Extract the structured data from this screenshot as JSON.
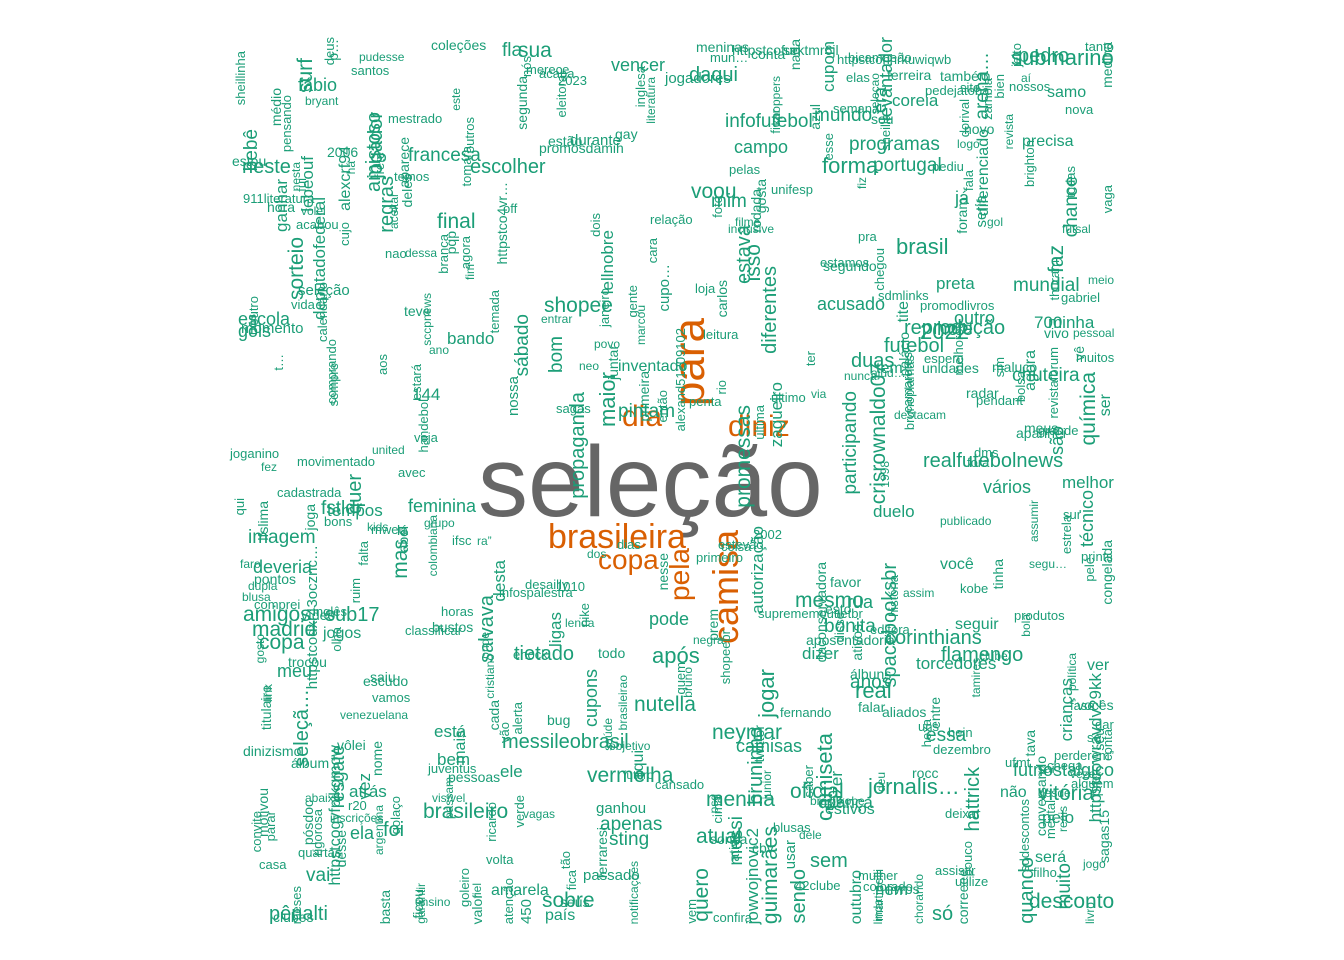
{
  "cloud": {
    "central_word": "seleção",
    "colors": {
      "small": "#1b9e77",
      "large": "#d95f02",
      "central": "#666666"
    },
    "large_words": [
      "para",
      "brasileira",
      "camisa",
      "dia",
      "diniz",
      "copa",
      "pela"
    ],
    "medium_words": [
      "sendo",
      "foi",
      "futebol",
      "isso",
      "não",
      "tem",
      "pelo",
      "já",
      "brasil",
      "outro",
      "programas",
      "participando",
      "propaganda",
      "vencer",
      "cupom",
      "lellnobre",
      "menina",
      "imagem",
      "acusado",
      "feminina",
      "amigos",
      "flamengo",
      "melhor",
      "estivos",
      "vai",
      "aqui",
      "bem",
      "gols",
      "só",
      "fla",
      "dizer",
      "sem",
      "estava",
      "tietado",
      "bando",
      "ver",
      "hoje",
      "ela",
      "zagueiro",
      "alexcrf94",
      "duas",
      "minha",
      "país",
      "jowvojnovic2",
      "ele",
      "duelo",
      "escolher",
      "quer",
      "rua",
      "muito",
      "mundial",
      "passado",
      "maior",
      "amarela",
      "realfutebolnews",
      "messileobrasil",
      "infofutebol",
      "madrid",
      "nem",
      "francesa",
      "preta",
      "torcedores",
      "hattrick",
      "jogador",
      "usar",
      "mais",
      "campo",
      "mesmo",
      "autorização",
      "pênalti",
      "final",
      "após",
      "anos",
      "ganhar",
      "sua",
      "você",
      "jornalis…",
      "forma",
      "copa",
      "ser",
      "são",
      "essa",
      "era",
      "ganhou",
      "amistoso",
      "mundo",
      "deputadofederal",
      "diferenciado",
      "meu",
      "neste",
      "seguir",
      "está",
      "nossa",
      "fábio",
      "quero",
      "sorteio",
      "sobre",
      "ligas",
      "pode",
      "messi",
      "vermelha",
      "desconto",
      "jogar",
      "atrás",
      "vez",
      "tite",
      "química",
      "144",
      "corinthians",
      "reprodução",
      "diferentes",
      "técnico",
      "nutella",
      "chance",
      "durante",
      "camisas",
      "arena…",
      "bom",
      "450",
      "apenas",
      "700",
      "sábado",
      "mas",
      "oficial",
      "jogos",
      "promessas",
      "brasileiro",
      "criança",
      "quando",
      "regras",
      "agora",
      "salvava",
      "pintam",
      "crianças",
      "fazer",
      "escola",
      "futnostalgico",
      "submarino",
      "camiseta",
      "shopee",
      "real",
      "outubro",
      "sting",
      "voou",
      "será",
      "coreia",
      "inventado",
      "samo",
      "sub17",
      "2022",
      "faz",
      "neymar",
      "chuteira",
      "lebeouf",
      "crisrownaldo07",
      "spacebooksbr",
      "httpstcowravdv29kk",
      "vitória",
      "atual",
      "pedro",
      "jogadores",
      "resgate",
      "tempos",
      "cupons",
      "cupo…",
      "mim",
      "desta",
      "guimarães",
      "fstldr",
      "seleção",
      "momento",
      "bruninho",
      "precisa",
      "deveria",
      "portugal",
      "seria",
      "bonita",
      "daqui",
      "bebê",
      "levantador",
      "httpstcodxr43ocznc…",
      "vários",
      "seleçã…",
      "httpstcogvfpjkgmow",
      "surf"
    ],
    "small_words": [
      "relação",
      "pendant",
      "carlos",
      "literatura",
      "ifsc",
      "cada",
      "lenda",
      "gol",
      "marcou",
      "vivo",
      "chorando",
      "bustos",
      "httpstcohnrkuwiqwb",
      "httpstco4vr…",
      "venezuelana",
      "último",
      "aceitar",
      "povo",
      "daconservadora",
      "visível",
      "bola",
      "conta",
      "cbv",
      "pedejatoba",
      "ficar",
      "todas",
      "mulher",
      "primeira",
      "perderem”",
      "nike",
      "ensino",
      "álbum",
      "prem",
      "garantir",
      "negra",
      "editora",
      "estará",
      "pontos",
      "desde",
      "verde",
      "penta",
      "2002",
      "revistaforum",
      "filme",
      "coisa",
      "kobe",
      "twitter",
      "sempre",
      "coleções",
      "motivou",
      "grande",
      "segu…",
      "golaço",
      "estamos",
      "passam",
      "casa",
      "qui",
      "nesta",
      "sdmlinks",
      "cima",
      "semana",
      "branca",
      "gabriel",
      "meus",
      "unidades",
      "brasileirao",
      "nossos",
      "deixar",
      "dois",
      "prints",
      "então",
      "argentina",
      "ative",
      "conversando",
      "calendário",
      "joga",
      "assumir",
      "lfslima",
      "fase",
      "pensando",
      "saúde",
      "dupla",
      "sei",
      "política",
      "segunda",
      "volta",
      "falta",
      "quartas",
      "nada",
      "jeito",
      "thuram",
      "utilize",
      "bruno",
      "fernando",
      "inglesa",
      "segundo",
      "abel",
      "radar",
      "médio",
      "kids",
      "link",
      "tava",
      "pudesse",
      "ter",
      "fez",
      "reais",
      "911literatura",
      "cujo",
      "avec",
      "zambia",
      "pessoas",
      "santos",
      "sonsa",
      "deles",
      "sou",
      "valor",
      "vocês",
      "atenção",
      "united",
      "esse",
      "última",
      "dos",
      "janeiro",
      "temos",
      "muitos",
      "volei",
      "ferraresi",
      "dorival",
      "nunca",
      "vaga",
      "maluco",
      "chegou",
      "ativos",
      "nesse",
      "falar",
      "bicampeão",
      "assim",
      "uns",
      "entre",
      "pqp",
      "congelada",
      "saber",
      "vida",
      "bug",
      "nos",
      "fim",
      "hein",
      "pessoal",
      "disse",
      "pouco",
      "álbuns",
      "shopeebr",
      "ricardo",
      "dezembro",
      "sheillinha",
      "cristiano",
      "história",
      "tão",
      "leitura",
      "medina",
      "azul",
      "agora",
      "ra”",
      "vê",
      "juventus",
      "frete",
      "veja",
      "p…",
      "sagas15",
      "vamos",
      "alerta",
      "este",
      "destacam",
      "bolsa",
      "inscrições",
      "brunoplamas",
      "aí",
      "rio",
      "conta",
      "nova",
      "há",
      "elas",
      "dele",
      "correeee",
      "colorado",
      "temada",
      "basta",
      "aposentadoria",
      "tomara",
      "livros",
      "nós",
      "trocou",
      "jogo",
      "gente",
      "dessa",
      "logo",
      "sim",
      "pediu",
      "cansado",
      "fiel",
      "ruim",
      "deus",
      "meninas",
      "parar",
      "neo",
      "deu",
      "classificar",
      "sur",
      "prei",
      "quem",
      "melhores",
      "escudo",
      "estrela",
      "acaba",
      "pelas",
      "selecao",
      "r20",
      "martinelli",
      "2023",
      "estão",
      "estevão",
      "clubes",
      "eleitoral",
      "unifesp",
      "fui",
      "horas",
      "dms",
      "off",
      "ano",
      "faro",
      "outro",
      "vão",
      "teve",
      "fica",
      "dar",
      "mental",
      "psg",
      "loja",
      "sai",
      "brasilkobe",
      "primeiro",
      "site",
      "publicado",
      "nao",
      "tamires",
      "fora",
      "gay",
      "sddescontos",
      "chega",
      "vagas",
      "rocc",
      "convite",
      "mun…",
      "cara",
      "1998",
      "alexand51209102",
      "vídeo",
      "comprando",
      "meio",
      "rodada",
      "produtos",
      "handebol",
      "comprei",
      "hora",
      "clube",
      "abaixo",
      "pósdoc",
      "gosto",
      "desailly",
      "via",
      "vôlei",
      "estou",
      "blusas",
      "todo",
      "espero",
      "pra",
      "lá",
      "1010",
      "blusa",
      "palácio",
      "foto",
      "outros",
      "aparece",
      "bons",
      "2006",
      "revista",
      "ferreira",
      "alguém",
      "sheilla",
      "futuro",
      "entrar",
      "tinha",
      "seu",
      "saiu",
      "confira",
      "dias",
      "olha",
      "mestrado",
      "cadastrada",
      "vem",
      "t…",
      "goleiro",
      "joganino",
      "assistir",
      "inglês",
      "mweu",
      "aliados",
      "enock",
      "futsal",
      "42clube",
      "se…",
      "colombiana",
      "suprememoutletbr",
      "sccpnews",
      "httpstcofurktmr6jl",
      "notificações",
      "meses",
      "foram",
      "linda",
      "inclusive",
      "fala",
      "promosdamih",
      "junior",
      "ajud…",
      "acabou",
      "filho",
      "infospalestra",
      "vezes",
      "rigorosa",
      "camarotes",
      "titulaire",
      "dinizismo",
      "apanhei",
      "ficou",
      "grupo",
      "promodlivros",
      "sagas",
      "merece",
      "brighton",
      "movimentado",
      "hexa",
      "também",
      "nome",
      "fiz",
      "onde",
      "gosta",
      "novo",
      "esto",
      "aos",
      "bryant",
      "ufmt",
      "juntar",
      "favor",
      "seus",
      "kpoppers",
      "objetivo",
      "pelé",
      "tanto",
      "bien",
      "desse",
      "livro"
    ]
  }
}
